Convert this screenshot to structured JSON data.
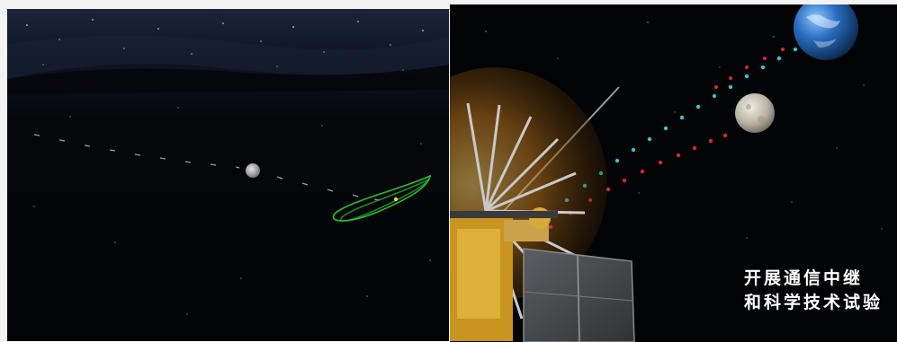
{
  "caption": {
    "line1": "开展通信中继",
    "line2": "和科学技术试验"
  },
  "colors": {
    "orbit_green": "#2bbf2b",
    "relay_dot_cyan": "#32c4d8",
    "relay_dot_red": "#d8283a",
    "earth_blue": "#2a6fc0",
    "satellite_gold": "#d9a528"
  }
}
